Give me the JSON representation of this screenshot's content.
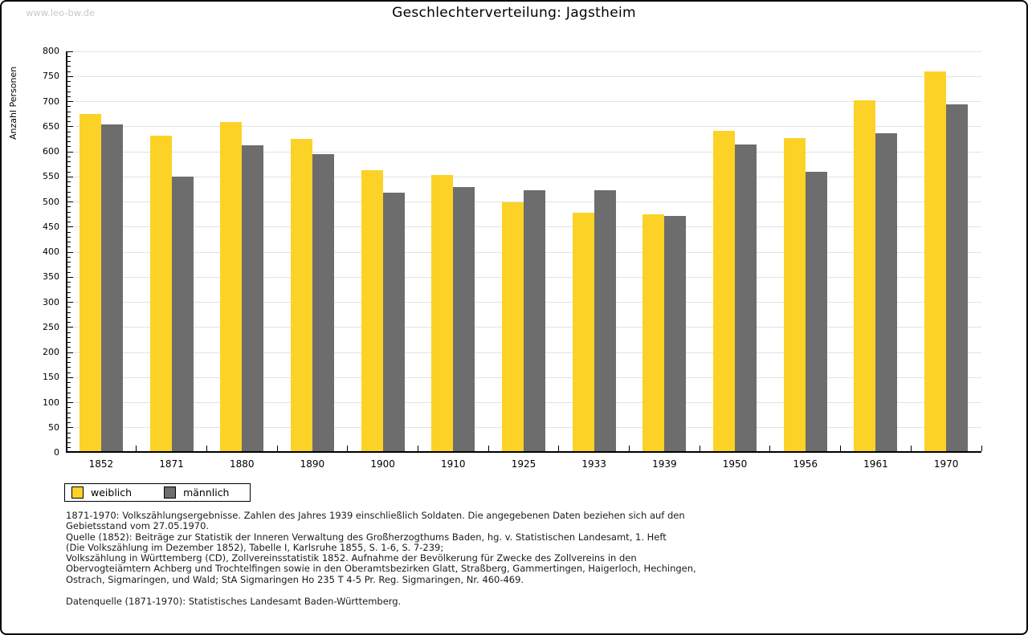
{
  "page": {
    "watermark": "www.leo-bw.de",
    "title": "Geschlechterverteilung: Jagstheim"
  },
  "chart_data": {
    "type": "bar",
    "title": "Geschlechterverteilung: Jagstheim",
    "categories": [
      "1852",
      "1871",
      "1880",
      "1890",
      "1900",
      "1910",
      "1925",
      "1933",
      "1939",
      "1950",
      "1956",
      "1961",
      "1970"
    ],
    "series": [
      {
        "name": "weiblich",
        "color": "#fcd227",
        "values": [
          675,
          632,
          660,
          626,
          563,
          554,
          500,
          478,
          475,
          642,
          628,
          703,
          760
        ]
      },
      {
        "name": "männlich",
        "color": "#6d6d6d",
        "values": [
          654,
          550,
          613,
          596,
          519,
          529,
          523,
          524,
          472,
          615,
          560,
          637,
          695
        ]
      }
    ],
    "xlabel": "",
    "ylabel": "Anzahl Personen",
    "ylim": [
      0,
      800
    ],
    "ytick_step": 50,
    "yminor_step": 10,
    "grid": true,
    "legend_position": "bottom-left"
  },
  "notes": {
    "lines": [
      "1871-1970: Volkszählungsergebnisse. Zahlen des Jahres 1939 einschließlich Soldaten. Die angegebenen Daten beziehen sich auf den",
      "Gebietsstand vom 27.05.1970.",
      "Quelle (1852): Beiträge zur Statistik der Inneren Verwaltung des Großherzogthums Baden, hg. v. Statistischen Landesamt, 1. Heft",
      "(Die Volkszählung im Dezember 1852), Tabelle I, Karlsruhe 1855, S. 1-6, S. 7-239;",
      "Volkszählung in Württemberg (CD), Zollvereinsstatistik 1852. Aufnahme der Bevölkerung für Zwecke des Zollvereins in den",
      "Obervogteiämtern Achberg und Trochtelfingen sowie in den Oberamtsbezirken Glatt, Straßberg, Gammertingen, Haigerloch, Hechingen,",
      "Ostrach, Sigmaringen, und Wald; StA Sigmaringen Ho 235 T 4-5 Pr. Reg. Sigmaringen, Nr. 460-469."
    ],
    "datasource": "Datenquelle (1871-1970): Statistisches Landesamt Baden-Württemberg."
  }
}
